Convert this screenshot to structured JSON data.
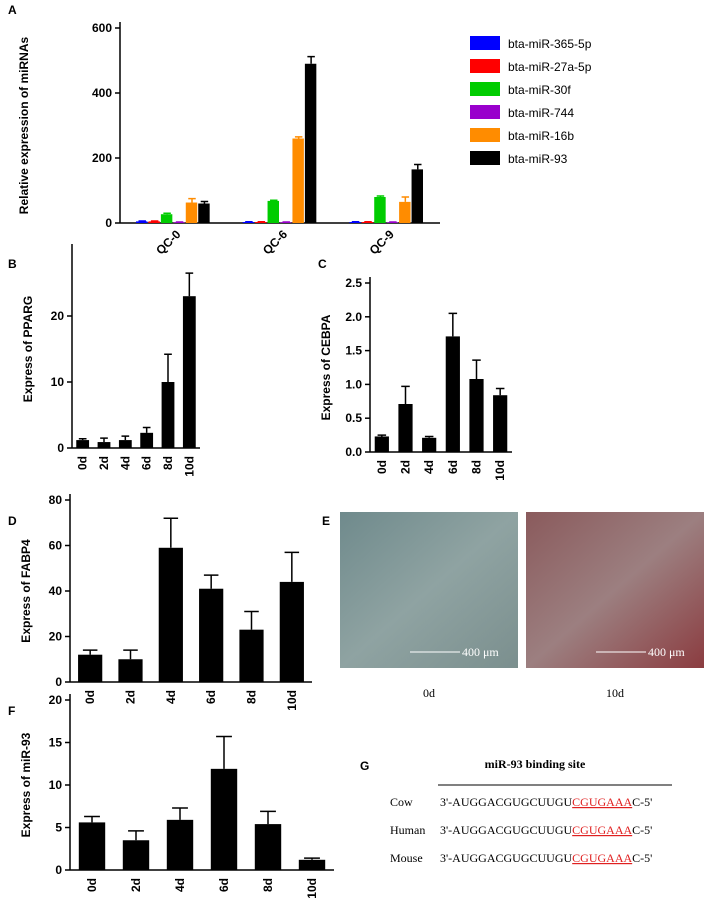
{
  "chart_data": [
    {
      "type": "bar",
      "panel_label": "A",
      "y_label": "Relative expression of miRNAs",
      "categories": [
        "QC-0",
        "QC-6",
        "QC-9"
      ],
      "ylim": [
        0,
        600
      ],
      "yticks": [
        0,
        200,
        400,
        600
      ],
      "series": [
        {
          "name": "bta-miR-365-5p",
          "color": "#0000ff",
          "values": [
            5,
            3,
            3
          ],
          "errors": [
            1,
            1,
            1
          ]
        },
        {
          "name": "bta-miR-27a-5p",
          "color": "#ff0000",
          "values": [
            5,
            3,
            3
          ],
          "errors": [
            1,
            1,
            1
          ]
        },
        {
          "name": "bta-miR-30f",
          "color": "#00cc00",
          "values": [
            27,
            68,
            80
          ],
          "errors": [
            3,
            2,
            3
          ]
        },
        {
          "name": "bta-miR-744",
          "color": "#9900cc",
          "values": [
            2,
            2,
            2
          ],
          "errors": [
            1,
            1,
            1
          ]
        },
        {
          "name": "bta-miR-16b",
          "color": "#ff8c00",
          "values": [
            63,
            260,
            65
          ],
          "errors": [
            12,
            5,
            15
          ]
        },
        {
          "name": "bta-miR-93",
          "color": "#000000",
          "values": [
            60,
            490,
            165
          ],
          "errors": [
            6,
            22,
            15
          ]
        }
      ]
    },
    {
      "type": "bar",
      "panel_label": "B",
      "y_label": "Express of PPARG",
      "categories": [
        "0d",
        "2d",
        "4d",
        "6d",
        "8d",
        "10d"
      ],
      "ylim": [
        0,
        30
      ],
      "yticks": [
        0,
        10,
        20
      ],
      "color": "#000000",
      "values": [
        1.2,
        0.9,
        1.2,
        2.3,
        10,
        23
      ],
      "errors": [
        0.2,
        0.6,
        0.6,
        0.8,
        4.2,
        3.5
      ]
    },
    {
      "type": "bar",
      "panel_label": "C",
      "y_label": "Express of CEBPA",
      "categories": [
        "0d",
        "2d",
        "4d",
        "6d",
        "8d",
        "10d"
      ],
      "ylim": [
        0,
        2.5
      ],
      "yticks": [
        {
          "value": 0,
          "label": "0.0"
        },
        0.5,
        {
          "value": 1,
          "label": "1.0"
        },
        1.5,
        {
          "value": 2,
          "label": "2.0"
        },
        2.5
      ],
      "color": "#000000",
      "values": [
        0.23,
        0.71,
        0.21,
        1.71,
        1.08,
        0.84
      ],
      "errors": [
        0.02,
        0.26,
        0.02,
        0.34,
        0.28,
        0.1
      ]
    },
    {
      "type": "bar",
      "panel_label": "D",
      "y_label": "Express of FABP4",
      "categories": [
        "0d",
        "2d",
        "4d",
        "6d",
        "8d",
        "10d"
      ],
      "ylim": [
        0,
        80
      ],
      "yticks": [
        0,
        20,
        40,
        60,
        80
      ],
      "color": "#000000",
      "values": [
        12,
        10,
        59,
        41,
        23,
        44
      ],
      "errors": [
        2,
        4,
        13,
        6,
        8,
        13
      ]
    },
    {
      "type": "bar",
      "panel_label": "F",
      "y_label": "Express of miR-93",
      "categories": [
        "0d",
        "2d",
        "4d",
        "6d",
        "8d",
        "10d"
      ],
      "ylim": [
        0,
        20
      ],
      "yticks": [
        0,
        5,
        10,
        15,
        20
      ],
      "color": "#000000",
      "values": [
        5.6,
        3.5,
        5.9,
        11.9,
        5.4,
        1.2
      ],
      "errors": [
        0.7,
        1.1,
        1.4,
        3.8,
        1.5,
        0.2
      ]
    }
  ],
  "panel_e": {
    "panel_label": "E",
    "scale_bar": "400 μm",
    "images": [
      "0d",
      "10d"
    ]
  },
  "panel_g": {
    "panel_label": "G",
    "title": "miR-93 binding site",
    "rows": [
      {
        "species": "Cow",
        "prefix": "3'-AUGGACGUGCUUGU",
        "site": "CGUGAAA",
        "suffix": "C-5'"
      },
      {
        "species": "Human",
        "prefix": "3'-AUGGACGUGCUUGU",
        "site": "CGUGAAA",
        "suffix": "C-5'"
      },
      {
        "species": "Mouse",
        "prefix": "3'-AUGGACGUGCUUGU",
        "site": "CGUGAAA",
        "suffix": "C-5'"
      }
    ]
  }
}
